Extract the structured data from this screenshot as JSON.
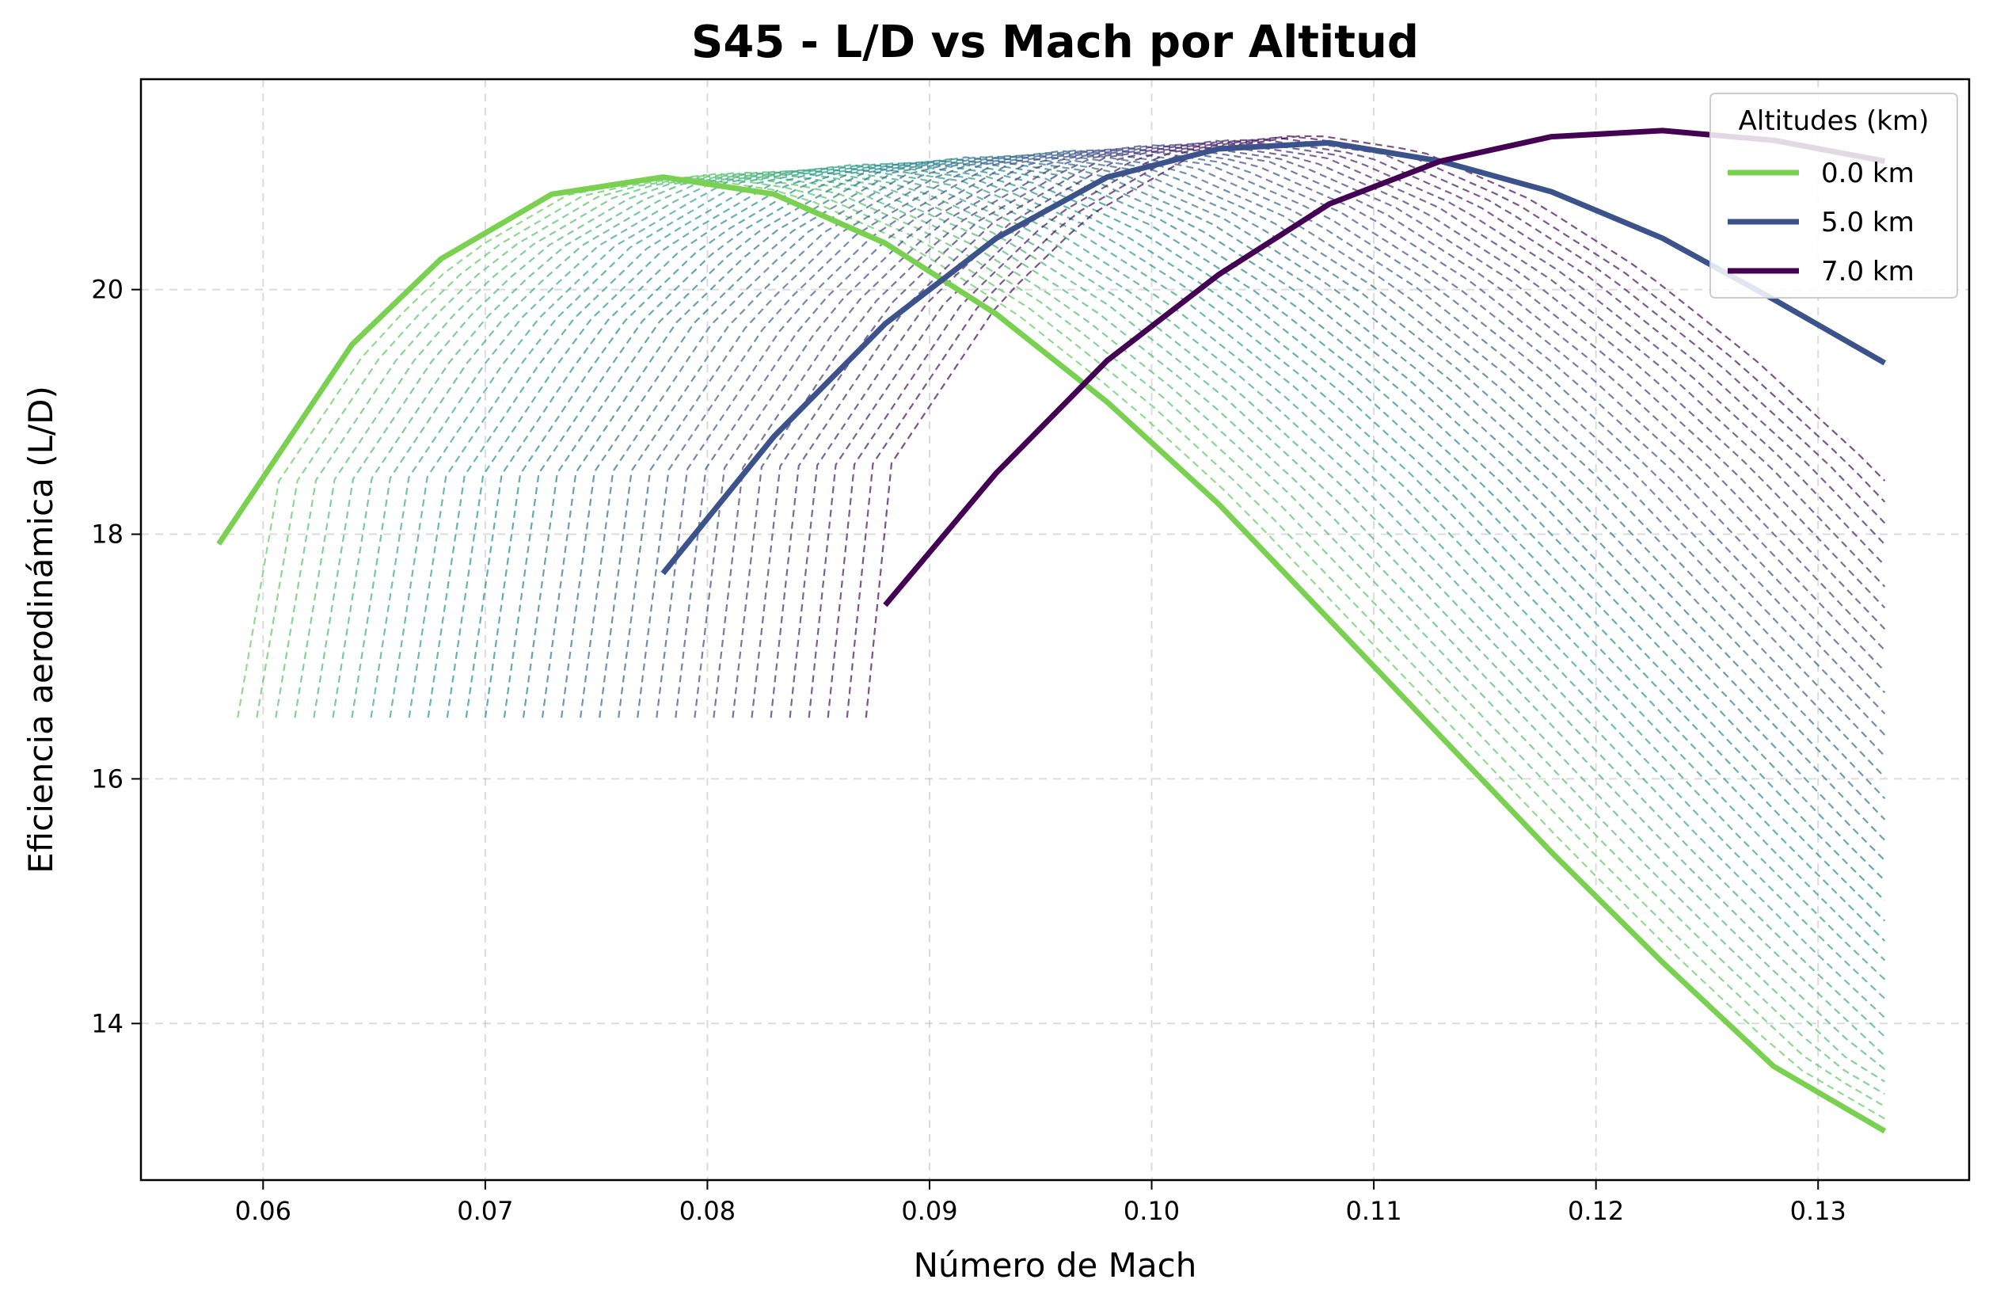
{
  "chart_data": {
    "type": "line",
    "title": "S45 - L/D vs Mach por Altitud",
    "xlabel": "Número de Mach",
    "ylabel": "Eficiencia aerodinámica (L/D)",
    "xlim": [
      0.0545,
      0.1368
    ],
    "ylim": [
      12.72,
      21.72
    ],
    "xticks": [
      0.06,
      0.07,
      0.08,
      0.09,
      0.1,
      0.11,
      0.12,
      0.13
    ],
    "xtick_labels": [
      "0.06",
      "0.07",
      "0.08",
      "0.09",
      "0.10",
      "0.11",
      "0.12",
      "0.13"
    ],
    "yticks": [
      14,
      16,
      18,
      20
    ],
    "ytick_labels": [
      "14",
      "16",
      "18",
      "20"
    ],
    "grid": true,
    "legend": {
      "title": "Altitudes (km)",
      "placement": "top-right",
      "entries": [
        {
          "label": "0.0 km",
          "color": "#7ad151"
        },
        {
          "label": "5.0 km",
          "color": "#3b528b"
        },
        {
          "label": "7.0 km",
          "color": "#440154"
        }
      ]
    },
    "series": [
      {
        "name": "0.0 km",
        "color": "#7ad151",
        "x": [
          0.058,
          0.064,
          0.068,
          0.073,
          0.078,
          0.083,
          0.088,
          0.093,
          0.098,
          0.103,
          0.108,
          0.113,
          0.118,
          0.123,
          0.128,
          0.133
        ],
        "y": [
          17.92,
          19.55,
          20.25,
          20.78,
          20.92,
          20.78,
          20.38,
          19.8,
          19.08,
          18.25,
          17.3,
          16.35,
          15.4,
          14.5,
          13.65,
          13.12
        ]
      },
      {
        "name": "5.0 km",
        "color": "#3b528b",
        "x": [
          0.078,
          0.083,
          0.088,
          0.093,
          0.098,
          0.103,
          0.108,
          0.113,
          0.118,
          0.123,
          0.128,
          0.133
        ],
        "y": [
          17.68,
          18.8,
          19.72,
          20.42,
          20.92,
          21.15,
          21.2,
          21.05,
          20.8,
          20.42,
          19.92,
          19.4
        ]
      },
      {
        "name": "7.0 km",
        "color": "#440154",
        "x": [
          0.088,
          0.093,
          0.098,
          0.103,
          0.108,
          0.113,
          0.118,
          0.123,
          0.128,
          0.133
        ],
        "y": [
          17.42,
          18.5,
          19.42,
          20.12,
          20.7,
          21.05,
          21.25,
          21.3,
          21.22,
          21.05
        ]
      }
    ],
    "intermediate_altitudes": {
      "count": 34,
      "style": "dashed",
      "colormap": "viridis"
    }
  }
}
